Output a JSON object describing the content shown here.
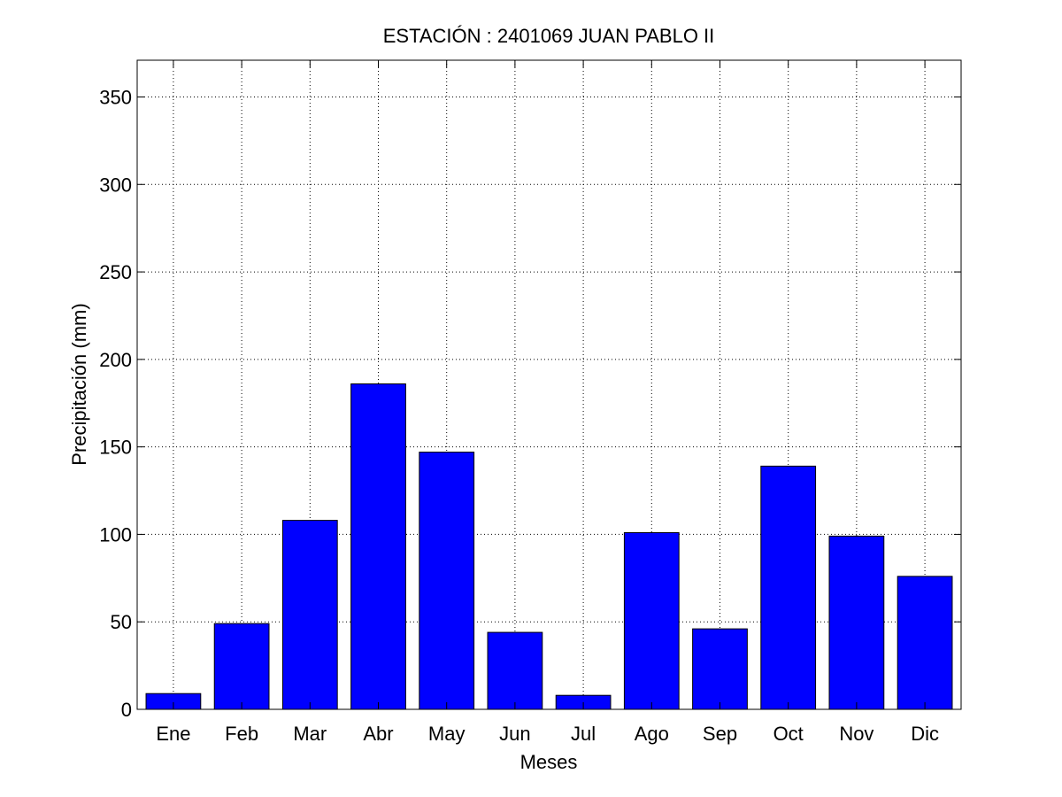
{
  "chart_data": {
    "type": "bar",
    "title": "ESTACIÓN :  2401069  JUAN PABLO II",
    "xlabel": "Meses",
    "ylabel": "Precipitación (mm)",
    "categories": [
      "Ene",
      "Feb",
      "Mar",
      "Abr",
      "May",
      "Jun",
      "Jul",
      "Ago",
      "Sep",
      "Oct",
      "Nov",
      "Dic"
    ],
    "values": [
      9,
      49,
      108,
      186,
      147,
      44,
      8,
      101,
      46,
      139,
      99,
      76
    ],
    "ylim": [
      0,
      371
    ],
    "yticks": [
      0,
      50,
      100,
      150,
      200,
      250,
      300,
      350
    ],
    "grid": true,
    "bar_color": "#0000ff",
    "edge_color": "#000000"
  }
}
